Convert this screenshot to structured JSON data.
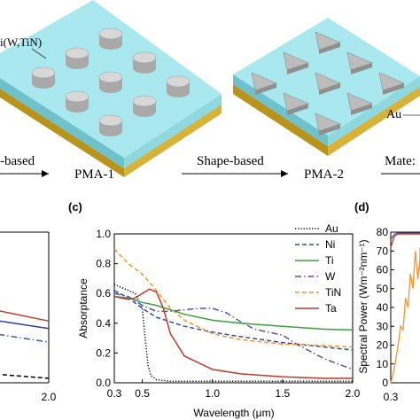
{
  "top": {
    "label_left_material": "i(W,TiN)",
    "label_right_material": "Au",
    "flow": [
      {
        "text": "-based"
      },
      {
        "text": "PMA-1"
      },
      {
        "text": "Shape-based"
      },
      {
        "text": "PMA-2"
      },
      {
        "text": "Mate:"
      }
    ]
  },
  "colors": {
    "substrate_top": "#a8e8ee",
    "substrate_side": "#7ccdd6",
    "gold": "#c9a62a",
    "cylinder": "#c8c8c8",
    "triangle": "#bdbdbd"
  },
  "chart_data": [
    {
      "panel": "b-partial",
      "type": "line",
      "x_ticks": [
        "2.0"
      ],
      "series": [
        {
          "color": "#c0392b",
          "style": "solid",
          "x": [
            0.3,
            0.6,
            1.0,
            1.5,
            2.0
          ],
          "y": [
            0.7,
            0.66,
            0.58,
            0.49,
            0.41
          ]
        },
        {
          "color": "#2c3e9e",
          "style": "solid",
          "x": [
            0.3,
            0.6,
            1.0,
            1.5,
            2.0
          ],
          "y": [
            0.62,
            0.58,
            0.5,
            0.42,
            0.36
          ]
        },
        {
          "color": "#3b5bbf",
          "style": "dashdot",
          "x": [
            0.3,
            0.6,
            1.0,
            1.5,
            2.0
          ],
          "y": [
            0.58,
            0.52,
            0.42,
            0.33,
            0.27
          ]
        },
        {
          "color": "#000000",
          "style": "dashed",
          "x": [
            0.3,
            0.6,
            1.0,
            1.5,
            2.0
          ],
          "y": [
            0.4,
            0.3,
            0.15,
            0.06,
            0.03
          ]
        }
      ]
    },
    {
      "panel": "(c)",
      "type": "line",
      "xlabel": "Wavelength (μm)",
      "ylabel": "Absorptance",
      "xlim": [
        0.3,
        2.0
      ],
      "ylim": [
        0.0,
        1.0
      ],
      "x_ticks": [
        "0.3",
        "0.5",
        "1.0",
        "1.5",
        "2.0"
      ],
      "y_ticks": [
        "0.0",
        "0.2",
        "0.4",
        "0.6",
        "0.8",
        "1.0"
      ],
      "legend_position": "top-right",
      "series": [
        {
          "name": "Au",
          "color": "#000000",
          "style": "dotted",
          "x": [
            0.3,
            0.4,
            0.45,
            0.5,
            0.52,
            0.54,
            0.56,
            0.6,
            0.7,
            1.0,
            2.0
          ],
          "y": [
            0.66,
            0.62,
            0.6,
            0.5,
            0.3,
            0.12,
            0.05,
            0.02,
            0.01,
            0.01,
            0.01
          ]
        },
        {
          "name": "Ni",
          "color": "#2d4dae",
          "style": "dashed",
          "x": [
            0.3,
            0.4,
            0.5,
            0.6,
            0.8,
            1.0,
            1.2,
            1.5,
            1.8,
            2.0
          ],
          "y": [
            0.62,
            0.57,
            0.5,
            0.44,
            0.38,
            0.34,
            0.31,
            0.27,
            0.24,
            0.22
          ]
        },
        {
          "name": "Ti",
          "color": "#3aa13a",
          "style": "solid",
          "x": [
            0.3,
            0.4,
            0.5,
            0.6,
            0.8,
            1.0,
            1.2,
            1.5,
            1.8,
            2.0
          ],
          "y": [
            0.58,
            0.57,
            0.54,
            0.52,
            0.46,
            0.42,
            0.4,
            0.38,
            0.36,
            0.355
          ]
        },
        {
          "name": "W",
          "color": "#5a4fa8",
          "style": "dashdot",
          "x": [
            0.3,
            0.4,
            0.5,
            0.6,
            0.7,
            0.8,
            0.9,
            1.0,
            1.1,
            1.2,
            1.3,
            1.5,
            1.6,
            1.8,
            2.0
          ],
          "y": [
            0.6,
            0.58,
            0.52,
            0.48,
            0.48,
            0.49,
            0.5,
            0.5,
            0.47,
            0.41,
            0.36,
            0.32,
            0.26,
            0.16,
            0.09
          ]
        },
        {
          "name": "TiN",
          "color": "#f0962a",
          "style": "dashed",
          "x": [
            0.3,
            0.4,
            0.5,
            0.6,
            0.7,
            0.8,
            1.0,
            1.2,
            1.5,
            1.8,
            2.0
          ],
          "y": [
            0.9,
            0.8,
            0.73,
            0.62,
            0.5,
            0.42,
            0.33,
            0.29,
            0.26,
            0.25,
            0.24
          ]
        },
        {
          "name": "Ta",
          "color": "#c0392b",
          "style": "solid",
          "x": [
            0.3,
            0.4,
            0.45,
            0.5,
            0.55,
            0.6,
            0.65,
            0.7,
            0.8,
            1.0,
            1.2,
            1.5,
            1.8,
            2.0
          ],
          "y": [
            0.58,
            0.56,
            0.57,
            0.6,
            0.63,
            0.61,
            0.5,
            0.33,
            0.18,
            0.09,
            0.06,
            0.04,
            0.03,
            0.03
          ]
        }
      ]
    },
    {
      "panel": "(d)",
      "type": "line",
      "ylabel": "Spectral Power (Wm⁻²nm⁻¹)",
      "ylim": [
        0,
        80
      ],
      "x_ticks": [
        "0.3"
      ],
      "y_ticks": [
        "0",
        "10",
        "20",
        "30",
        "40",
        "50",
        "60",
        "70",
        "80"
      ],
      "series": [
        {
          "color": "#f0962a",
          "style": "solid",
          "x": [
            0.3,
            0.32,
            0.34,
            0.36,
            0.38,
            0.4,
            0.42,
            0.44,
            0.46,
            0.48,
            0.5,
            0.52,
            0.54,
            0.56,
            0.58,
            0.6
          ],
          "y": [
            0,
            5,
            12,
            20,
            30,
            28,
            45,
            40,
            58,
            50,
            70,
            55,
            66,
            60,
            72,
            62
          ]
        },
        {
          "color": "#c0392b",
          "style": "solid",
          "x": [
            0.3,
            0.33,
            0.36,
            0.4,
            0.5,
            0.6
          ],
          "y": [
            72,
            78,
            79,
            79,
            79,
            79
          ]
        },
        {
          "color": "#5a4fa8",
          "style": "solid",
          "x": [
            0.3,
            0.33,
            0.36,
            0.4,
            0.5,
            0.6
          ],
          "y": [
            76,
            79,
            79.5,
            79.5,
            79.5,
            79.5
          ]
        }
      ]
    }
  ]
}
